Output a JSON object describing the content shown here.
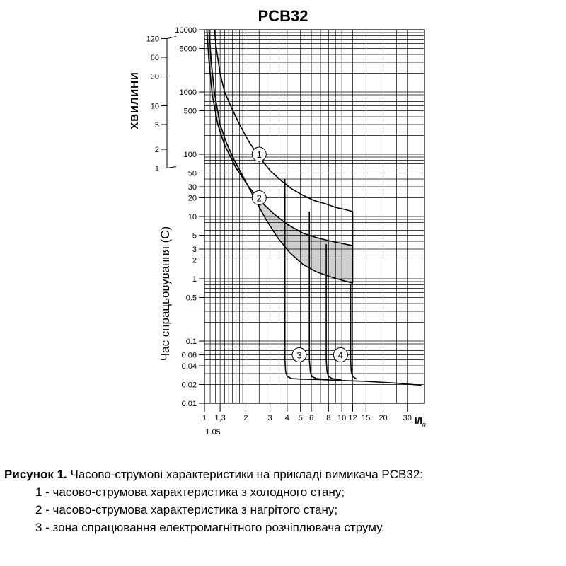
{
  "chart_data": {
    "type": "line",
    "title": "PCB32",
    "xlabel_main": "I/I",
    "xlabel_sub": "n",
    "ylabel": "Час спрацьовування (С)",
    "ylabel_minutes": "ХВИЛИНИ",
    "x_scale": "log",
    "y_scale": "log",
    "xlim": [
      1,
      40
    ],
    "ylim": [
      0.01,
      10000
    ],
    "grid": true,
    "x_ticks": [
      {
        "v": 1,
        "t": "1"
      },
      {
        "v": 1.3,
        "t": "1,3"
      },
      {
        "v": 2,
        "t": "2"
      },
      {
        "v": 3,
        "t": "3"
      },
      {
        "v": 4,
        "t": "4"
      },
      {
        "v": 5,
        "t": "5"
      },
      {
        "v": 6,
        "t": "6"
      },
      {
        "v": 8,
        "t": "8"
      },
      {
        "v": 10,
        "t": "10"
      },
      {
        "v": 12,
        "t": "12"
      },
      {
        "v": 15,
        "t": "15"
      },
      {
        "v": 20,
        "t": "20"
      },
      {
        "v": 30,
        "t": "30"
      }
    ],
    "x_extra_label": {
      "v": 1.05,
      "t": "1.05"
    },
    "y_ticks": [
      {
        "v": 10000,
        "t": "10000"
      },
      {
        "v": 5000,
        "t": "5000"
      },
      {
        "v": 1000,
        "t": "1000"
      },
      {
        "v": 500,
        "t": "500"
      },
      {
        "v": 100,
        "t": "100"
      },
      {
        "v": 50,
        "t": "50"
      },
      {
        "v": 30,
        "t": "30"
      },
      {
        "v": 20,
        "t": "20"
      },
      {
        "v": 10,
        "t": "10"
      },
      {
        "v": 5,
        "t": "5"
      },
      {
        "v": 3,
        "t": "3"
      },
      {
        "v": 2,
        "t": "2"
      },
      {
        "v": 1,
        "t": "1"
      },
      {
        "v": 0.5,
        "t": "0.5"
      },
      {
        "v": 0.1,
        "t": "0.1"
      },
      {
        "v": 0.06,
        "t": "0.06"
      },
      {
        "v": 0.04,
        "t": "0.04"
      },
      {
        "v": 0.02,
        "t": "0.02"
      },
      {
        "v": 0.01,
        "t": "0.01"
      }
    ],
    "minute_ticks": [
      {
        "v": 7200,
        "t": "120"
      },
      {
        "v": 3600,
        "t": "60"
      },
      {
        "v": 1800,
        "t": "30"
      },
      {
        "v": 600,
        "t": "10"
      },
      {
        "v": 300,
        "t": "5"
      },
      {
        "v": 120,
        "t": "2"
      },
      {
        "v": 60,
        "t": "1"
      }
    ],
    "series": [
      {
        "name": "1",
        "x": [
          1.18,
          1.22,
          1.3,
          1.4,
          1.55,
          1.8,
          2.1,
          2.5,
          3.0,
          3.6,
          4.3,
          5.2,
          6.3,
          7.6,
          9.0,
          10.5,
          12.0
        ],
        "y": [
          10000,
          5000,
          2000,
          1000,
          600,
          300,
          160,
          90,
          55,
          38,
          28,
          22,
          18,
          16,
          14,
          13,
          12
        ]
      },
      {
        "name": "2",
        "x": [
          1.08,
          1.12,
          1.18,
          1.3,
          1.45,
          1.65,
          1.9,
          2.3,
          2.8,
          3.4,
          4.2,
          5.2,
          6.5,
          8.0,
          10.0,
          12.0
        ],
        "y": [
          10000,
          3000,
          1000,
          300,
          150,
          80,
          45,
          20,
          9,
          4.6,
          2.6,
          1.7,
          1.3,
          1.1,
          0.95,
          0.85
        ]
      },
      {
        "name": "2-upper",
        "x": [
          1.04,
          1.08,
          1.14,
          1.25,
          1.4,
          1.7,
          2.1,
          2.6,
          3.2,
          4.0,
          5.2,
          6.5,
          8.0,
          10.0,
          12.0
        ],
        "y": [
          10000,
          3000,
          900,
          300,
          140,
          60,
          30,
          17,
          11,
          7.5,
          5.4,
          4.6,
          4.1,
          3.7,
          3.4
        ]
      },
      {
        "name": "3",
        "x": [
          3.85,
          3.85,
          3.9,
          4.0,
          4.3,
          5.0,
          7.0,
          10.0,
          15.0,
          25.0,
          38.0
        ],
        "y": [
          40,
          0.05,
          0.032,
          0.027,
          0.025,
          0.0245,
          0.024,
          0.0232,
          0.0225,
          0.021,
          0.0195
        ]
      },
      {
        "name": "4",
        "x": [
          7.7,
          7.7,
          7.8,
          8.0,
          8.5,
          10.0
        ],
        "y": [
          3.6,
          0.05,
          0.032,
          0.027,
          0.025,
          0.0235
        ]
      },
      {
        "name": "mid-a",
        "x": [
          5.8,
          5.8,
          5.9,
          6.05,
          6.5,
          8.0
        ],
        "y": [
          12,
          0.05,
          0.032,
          0.027,
          0.025,
          0.024
        ]
      },
      {
        "name": "mid-b",
        "x": [
          11.6,
          11.6,
          11.7,
          12.0,
          12.8
        ],
        "y": [
          0.8,
          0.05,
          0.032,
          0.027,
          0.0245
        ]
      }
    ],
    "curve_labels": [
      {
        "t": "1",
        "x": 2.5,
        "y": 100
      },
      {
        "t": "2",
        "x": 2.5,
        "y": 20
      },
      {
        "t": "3",
        "x": 4.9,
        "y": 0.06
      },
      {
        "t": "4",
        "x": 9.8,
        "y": 0.06
      }
    ]
  },
  "caption": {
    "title_bold": "Рисунок 1.",
    "title_rest": " Часово-струмові характеристики на прикладі вимикача PCB32:",
    "items": [
      "1 - часово-струмова характеристика з холодного стану;",
      "2 - часово-струмова характеристика з нагрітого стану;",
      "3 - зона спрацювання електромагнітного розчіплювача струму."
    ]
  }
}
